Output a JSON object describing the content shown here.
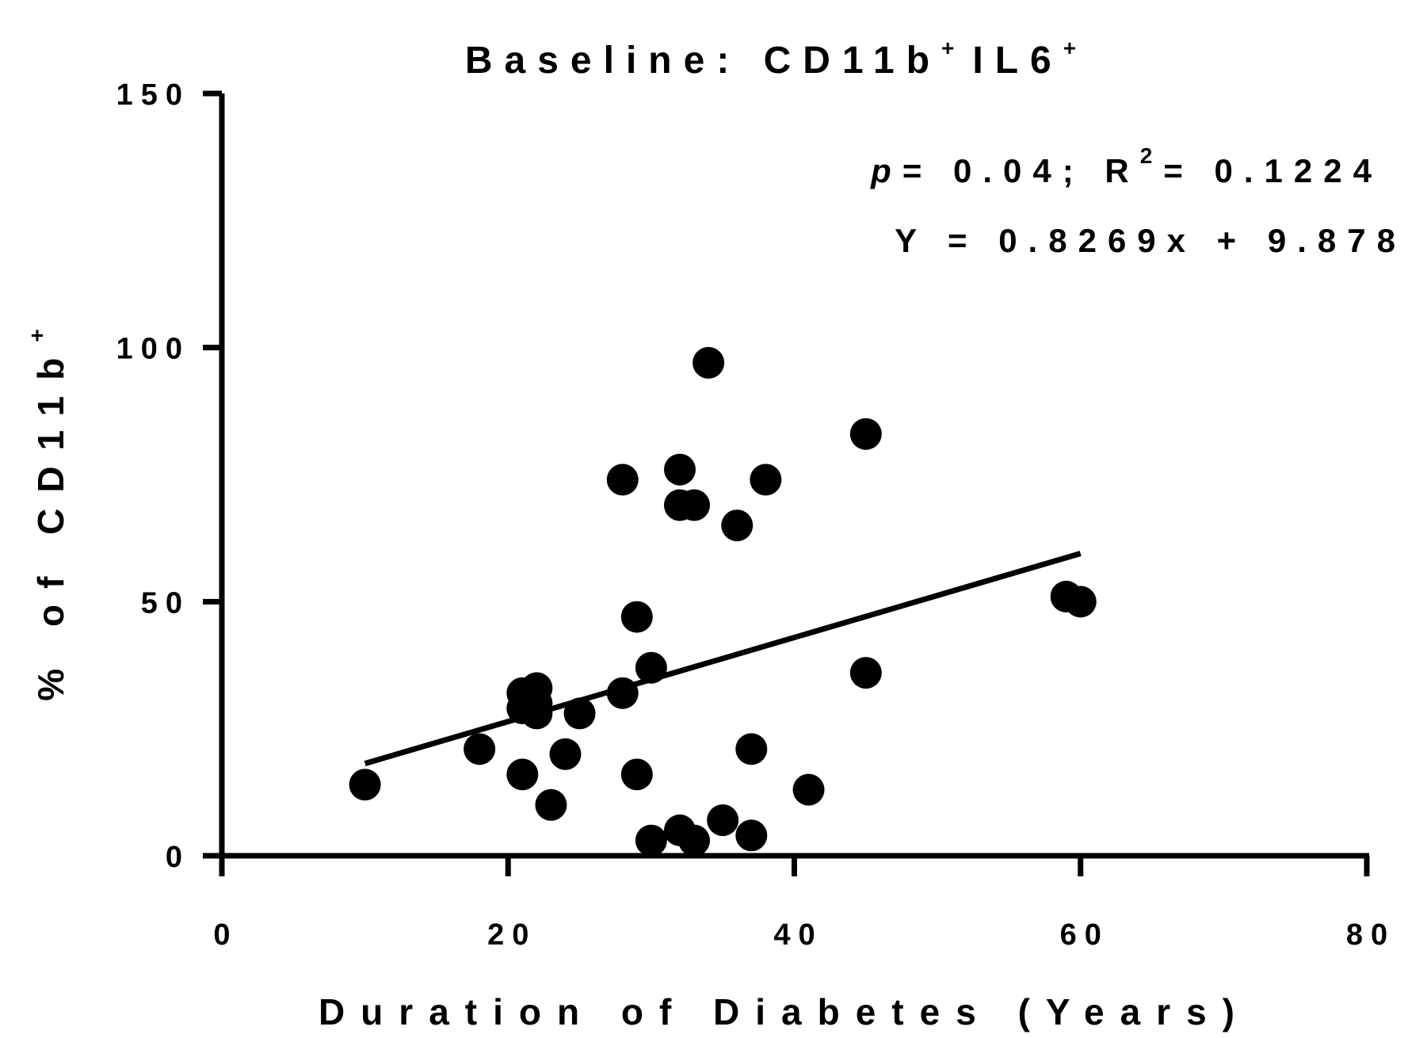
{
  "chart_data": {
    "type": "scatter",
    "title": "Baseline: CD11b",
    "title_sup": "+",
    "title_mid": "IL6",
    "title_sup2": "+",
    "xlabel": "Duration of Diabetes (Years)",
    "ylabel": "% of CD11b",
    "ylabel_sup": "+",
    "xlim": [
      0,
      80
    ],
    "ylim": [
      0,
      150
    ],
    "xticks": [
      0,
      20,
      40,
      60,
      80
    ],
    "yticks": [
      0,
      50,
      100,
      150
    ],
    "x": [
      10,
      18,
      21,
      21,
      21,
      22,
      22,
      22,
      23,
      24,
      25,
      28,
      28,
      29,
      29,
      30,
      30,
      32,
      32,
      32,
      33,
      33,
      34,
      35,
      36,
      37,
      37,
      38,
      41,
      45,
      45,
      59,
      60
    ],
    "y": [
      14,
      21,
      16,
      29,
      32,
      33,
      30,
      28,
      10,
      20,
      28,
      74,
      32,
      47,
      16,
      37,
      3,
      76,
      69,
      5,
      69,
      3,
      97,
      7,
      65,
      21,
      4,
      74,
      13,
      83,
      36,
      51,
      50
    ],
    "regression": {
      "slope": 0.8269,
      "intercept": 9.878,
      "x_range": [
        10,
        60
      ]
    },
    "annotations": {
      "p_label": "p",
      "p_value": "= 0.04; R",
      "r2_sup": "2",
      "r2_value": "= 0.1224",
      "equation": "Y = 0.8269x + 9.878"
    }
  }
}
